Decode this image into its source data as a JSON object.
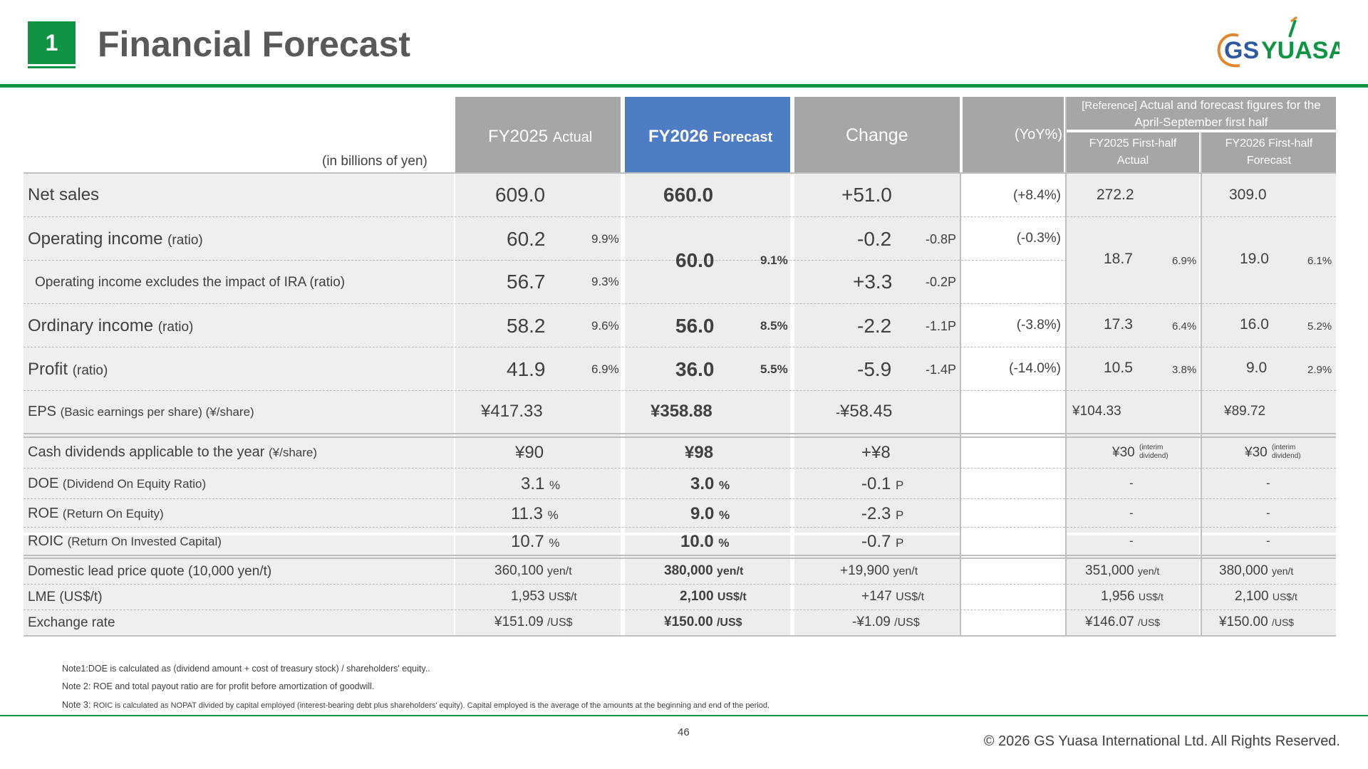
{
  "header": {
    "section_number": "1",
    "title": "Financial Forecast",
    "logo_text_gs": "GS",
    "logo_text_yuasa": "YUASA"
  },
  "table": {
    "unit_label": "(in billions of yen)",
    "col_fy2025": "FY2025",
    "col_fy2025_sub": "Actual",
    "col_fy2026": "FY2026",
    "col_fy2026_sub": "Forecast",
    "col_change": "Change",
    "col_yoy": "(YoY%)",
    "ref_header": "[Reference]",
    "ref_header_rest": "Actual and forecast figures for the April-September first half",
    "ref_col1": "FY2025 First-half Actual",
    "ref_col2": "FY2026 First-half Forecast",
    "rows": {
      "net_sales": {
        "label": "Net sales",
        "fy25": "609.0",
        "fy26": "660.0",
        "chg": "+51.0",
        "yoy": "(+8.4%)",
        "h125": "272.2",
        "h126": "309.0"
      },
      "op_income": {
        "label": "Operating income",
        "label_sub": "(ratio)",
        "fy25": "60.2",
        "fy25_r": "9.9%",
        "fy26": "60.0",
        "fy26_r": "9.1%",
        "chg": "-0.2",
        "chg_p": "-0.8P",
        "yoy": "(-0.3%)",
        "h125": "18.7",
        "h125_r": "6.9%",
        "h126": "19.0",
        "h126_r": "6.1%"
      },
      "op_income_ira": {
        "label": "Operating income excludes the impact of IRA",
        "label_sub": "(ratio)",
        "fy25": "56.7",
        "fy25_r": "9.3%",
        "chg": "+3.3",
        "chg_p": "-0.2P"
      },
      "ord_income": {
        "label": "Ordinary income",
        "label_sub": "(ratio)",
        "fy25": "58.2",
        "fy25_r": "9.6%",
        "fy26": "56.0",
        "fy26_r": "8.5%",
        "chg": "-2.2",
        "chg_p": "-1.1P",
        "yoy": "(-3.8%)",
        "h125": "17.3",
        "h125_r": "6.4%",
        "h126": "16.0",
        "h126_r": "5.2%"
      },
      "profit": {
        "label": "Profit",
        "label_sub": "(ratio)",
        "fy25": "41.9",
        "fy25_r": "6.9%",
        "fy26": "36.0",
        "fy26_r": "5.5%",
        "chg": "-5.9",
        "chg_p": "-1.4P",
        "yoy": "(-14.0%)",
        "h125": "10.5",
        "h125_r": "3.8%",
        "h126": "9.0",
        "h126_r": "2.9%"
      },
      "eps": {
        "label": "EPS",
        "label_sub": "(Basic earnings per share) (¥/share)",
        "fy25": "¥417.33",
        "fy26": "¥358.88",
        "chg_sign": "-",
        "chg": "¥58.45",
        "h125": "¥104.33",
        "h126": "¥89.72"
      },
      "dividends": {
        "label": "Cash dividends applicable to the year",
        "label_sub": "(¥/share)",
        "fy25": "¥90",
        "fy26": "¥98",
        "chg": "+¥8",
        "h125": "¥30",
        "h126": "¥30",
        "interim_1": "(interim",
        "interim_2": "dividend)"
      },
      "doe": {
        "label": "DOE",
        "label_sub": "(Dividend On Equity Ratio)",
        "fy25": "3.1",
        "fy26": "3.0",
        "unit": "%",
        "chg": "-0.1",
        "chg_u": "P",
        "h125": "-",
        "h126": "-"
      },
      "roe": {
        "label": "ROE",
        "label_sub": "(Return On Equity)",
        "fy25": "11.3",
        "fy26": "9.0",
        "unit": "%",
        "chg": "-2.3",
        "chg_u": "P",
        "h125": "-",
        "h126": "-"
      },
      "roic": {
        "label": "ROIC",
        "label_sub": "(Return On Invested Capital)",
        "fy25": "10.7",
        "fy26": "10.0",
        "unit": "%",
        "chg": "-0.7",
        "chg_u": "P",
        "h125": "-",
        "h126": "-"
      },
      "lead": {
        "label": "Domestic lead price quote (10,000 yen/t)",
        "fy25": "360,100",
        "fy26": "380,000",
        "chg": "+19,900",
        "unit": "yen/t",
        "h125": "351,000",
        "h126": "380,000"
      },
      "lme": {
        "label": "LME (US$/t)",
        "fy25": "1,953",
        "fy26": "2,100",
        "chg": "+147",
        "unit": "US$/t",
        "h125": "1,956",
        "h126": "2,100"
      },
      "fx": {
        "label": "Exchange rate",
        "fy25": "¥151.09",
        "fy26": "¥150.00",
        "chg": "-¥1.09",
        "unit": "/US$",
        "h125": "¥146.07",
        "h126": "¥150.00"
      }
    }
  },
  "notes": {
    "note1": "Note1:DOE is calculated as (dividend amount + cost of treasury stock) / shareholders' equity..",
    "note2": "Note 2: ROE and total payout ratio are for profit before amortization of goodwill.",
    "note3_head": "Note 3:",
    "note3_body": "ROIC is calculated as NOPAT divided by capital employed (interest-bearing debt plus shareholders' equity). Capital employed is the average of the amounts at the beginning and end of the period."
  },
  "footer": {
    "page_number": "46",
    "copyright": "© 2026 GS Yuasa International Ltd. All Rights Reserved."
  },
  "colors": {
    "green": "#109444",
    "blue_header": "#4f7dc4",
    "gray_header": "#a6a6a6"
  }
}
